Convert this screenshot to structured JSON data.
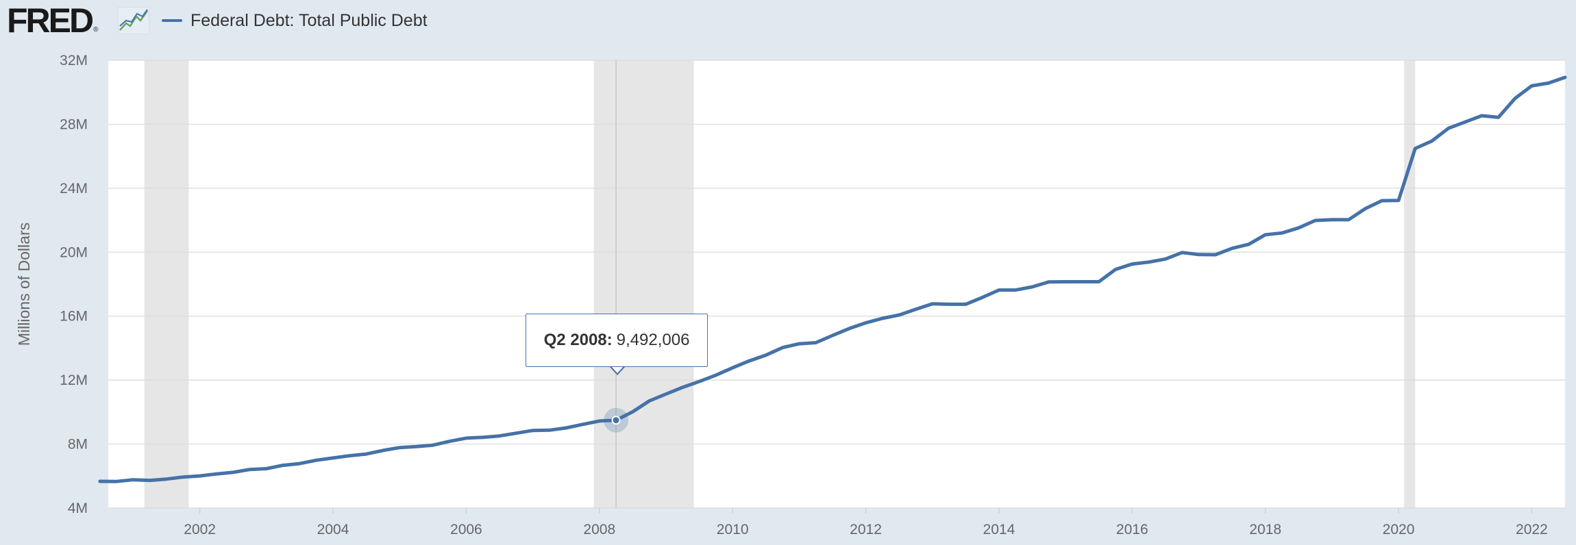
{
  "brand": {
    "name": "FRED",
    "registered_mark": "®",
    "icon": "fred-graph-icon"
  },
  "legend": {
    "label": "Federal Debt: Total Public Debt",
    "color": "#4572a7"
  },
  "tooltip": {
    "date": "Q2 2008:",
    "value": "9,492,006"
  },
  "chart_data": {
    "type": "line",
    "ylabel": "Millions of Dollars",
    "xlabel": "",
    "ylim": [
      4000000,
      32000000
    ],
    "xlim": [
      2000.625,
      2022.5
    ],
    "y_ticks": [
      4000000,
      8000000,
      12000000,
      16000000,
      20000000,
      24000000,
      28000000,
      32000000
    ],
    "y_tick_labels": [
      "4M",
      "8M",
      "12M",
      "16M",
      "20M",
      "24M",
      "28M",
      "32M"
    ],
    "x_ticks": [
      2002,
      2004,
      2006,
      2008,
      2010,
      2012,
      2014,
      2016,
      2018,
      2020,
      2022
    ],
    "x_tick_labels": [
      "2002",
      "2004",
      "2006",
      "2008",
      "2010",
      "2012",
      "2014",
      "2016",
      "2018",
      "2020",
      "2022"
    ],
    "grid": "horizontal",
    "line_color": "#4572a7",
    "recession_color": "#e6e6e6",
    "recessions": [
      {
        "start": "2001-03",
        "end": "2001-11"
      },
      {
        "start": "2007-12",
        "end": "2009-06"
      },
      {
        "start": "2020-02",
        "end": "2020-04"
      }
    ],
    "highlighted_point": {
      "x": "Q2 2008",
      "y": 9492006
    },
    "series": [
      {
        "name": "Federal Debt: Total Public Debt",
        "x": [
          "Q3 2000",
          "Q4 2000",
          "Q1 2001",
          "Q2 2001",
          "Q3 2001",
          "Q4 2001",
          "Q1 2002",
          "Q2 2002",
          "Q3 2002",
          "Q4 2002",
          "Q1 2003",
          "Q2 2003",
          "Q3 2003",
          "Q4 2003",
          "Q1 2004",
          "Q2 2004",
          "Q3 2004",
          "Q4 2004",
          "Q1 2005",
          "Q2 2005",
          "Q3 2005",
          "Q4 2005",
          "Q1 2006",
          "Q2 2006",
          "Q3 2006",
          "Q4 2006",
          "Q1 2007",
          "Q2 2007",
          "Q3 2007",
          "Q4 2007",
          "Q1 2008",
          "Q2 2008",
          "Q3 2008",
          "Q4 2008",
          "Q1 2009",
          "Q2 2009",
          "Q3 2009",
          "Q4 2009",
          "Q1 2010",
          "Q2 2010",
          "Q3 2010",
          "Q4 2010",
          "Q1 2011",
          "Q2 2011",
          "Q3 2011",
          "Q4 2011",
          "Q1 2012",
          "Q2 2012",
          "Q3 2012",
          "Q4 2012",
          "Q1 2013",
          "Q2 2013",
          "Q3 2013",
          "Q4 2013",
          "Q1 2014",
          "Q2 2014",
          "Q3 2014",
          "Q4 2014",
          "Q1 2015",
          "Q2 2015",
          "Q3 2015",
          "Q4 2015",
          "Q1 2016",
          "Q2 2016",
          "Q3 2016",
          "Q4 2016",
          "Q1 2017",
          "Q2 2017",
          "Q3 2017",
          "Q4 2017",
          "Q1 2018",
          "Q2 2018",
          "Q3 2018",
          "Q4 2018",
          "Q1 2019",
          "Q2 2019",
          "Q3 2019",
          "Q4 2019",
          "Q1 2020",
          "Q2 2020",
          "Q3 2020",
          "Q4 2020",
          "Q1 2021",
          "Q2 2021",
          "Q3 2021",
          "Q4 2021",
          "Q1 2022",
          "Q2 2022",
          "Q3 2022"
        ],
        "values": [
          5670000,
          5660000,
          5770000,
          5730000,
          5810000,
          5940000,
          6010000,
          6130000,
          6230000,
          6410000,
          6460000,
          6670000,
          6780000,
          6990000,
          7130000,
          7270000,
          7380000,
          7600000,
          7780000,
          7840000,
          7930000,
          8170000,
          8370000,
          8420000,
          8510000,
          8680000,
          8850000,
          8870000,
          9010000,
          9230000,
          9440000,
          9492006,
          10020000,
          10700000,
          11130000,
          11550000,
          11910000,
          12310000,
          12770000,
          13200000,
          13560000,
          14030000,
          14270000,
          14340000,
          14790000,
          15220000,
          15580000,
          15860000,
          16070000,
          16430000,
          16770000,
          16740000,
          16740000,
          17170000,
          17630000,
          17630000,
          17830000,
          18140000,
          18150000,
          18150000,
          18150000,
          18920000,
          19260000,
          19380000,
          19570000,
          19980000,
          19850000,
          19840000,
          20240000,
          20490000,
          21090000,
          21200000,
          21520000,
          21980000,
          22030000,
          22030000,
          22720000,
          23220000,
          23230000,
          26480000,
          26950000,
          27750000,
          28140000,
          28530000,
          28430000,
          29620000,
          30400000,
          30570000,
          30930000
        ]
      }
    ]
  }
}
